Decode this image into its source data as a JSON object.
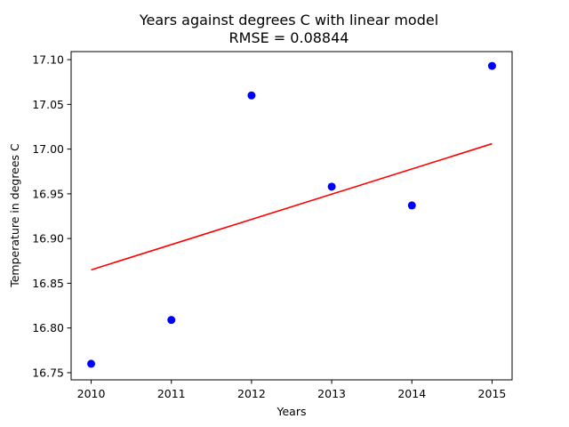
{
  "chart_data": {
    "type": "scatter",
    "title": "Years against degrees C with linear model",
    "subtitle": "RMSE = 0.08844",
    "xlabel": "Years",
    "ylabel": "Temperature in degrees C",
    "xlim": [
      2009.75,
      2015.25
    ],
    "ylim": [
      16.742,
      17.109
    ],
    "x_ticks": [
      "2010",
      "2011",
      "2012",
      "2013",
      "2014",
      "2015"
    ],
    "y_ticks": [
      "16.75",
      "16.80",
      "16.85",
      "16.90",
      "16.95",
      "17.00",
      "17.05",
      "17.10"
    ],
    "grid": false,
    "series": [
      {
        "type": "scatter",
        "color": "#0000ff",
        "x": [
          2010,
          2011,
          2012,
          2013,
          2014,
          2015
        ],
        "y": [
          16.76,
          16.809,
          17.06,
          16.958,
          16.937,
          17.093
        ]
      },
      {
        "type": "line",
        "color": "#ff0000",
        "x": [
          2010,
          2015
        ],
        "y": [
          16.865,
          17.006
        ]
      }
    ]
  }
}
